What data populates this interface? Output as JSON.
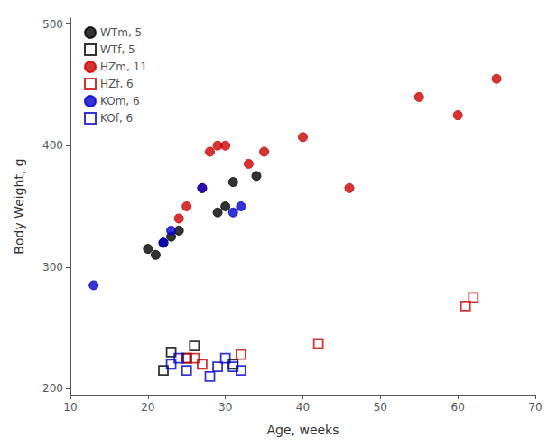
{
  "chart_data": {
    "type": "scatter",
    "xlabel": "Age, weeks",
    "ylabel": "Body Weight, g",
    "xlim": [
      10,
      70
    ],
    "xticks": [
      10,
      20,
      30,
      40,
      50,
      60,
      70
    ],
    "ylim": [
      195,
      505
    ],
    "yticks": [
      200,
      300,
      400,
      500
    ],
    "grid": false,
    "legend": "upper left",
    "series": [
      {
        "name": "WTm, 5",
        "color": "black",
        "marker": "circle",
        "x": [
          20,
          21,
          22,
          23,
          24,
          29,
          30,
          31,
          34
        ],
        "values": [
          315,
          310,
          320,
          325,
          330,
          345,
          350,
          370,
          375
        ]
      },
      {
        "name": "WTf, 5",
        "color": "black",
        "marker": "square",
        "x": [
          22,
          23,
          25,
          26,
          31
        ],
        "values": [
          215,
          230,
          225,
          235,
          220
        ]
      },
      {
        "name": "HZm, 11",
        "color": "#cc0000",
        "marker": "circle",
        "x": [
          24,
          25,
          27,
          28,
          29,
          30,
          33,
          35,
          40,
          46,
          55,
          60,
          65
        ],
        "values": [
          340,
          350,
          365,
          395,
          400,
          400,
          385,
          395,
          407,
          365,
          440,
          425,
          455
        ]
      },
      {
        "name": "HZf, 6",
        "color": "#cc0000",
        "marker": "square",
        "x": [
          25,
          26,
          27,
          32,
          42,
          61,
          62
        ],
        "values": [
          225,
          225,
          220,
          228,
          237,
          268,
          275
        ]
      },
      {
        "name": "KOm, 6",
        "color": "#0000cc",
        "marker": "circle",
        "x": [
          13,
          22,
          23,
          27,
          31,
          32
        ],
        "values": [
          285,
          320,
          330,
          365,
          345,
          350
        ]
      },
      {
        "name": "KOf, 6",
        "color": "#0000cc",
        "marker": "square",
        "x": [
          23,
          24,
          25,
          28,
          29,
          30,
          31,
          32
        ],
        "values": [
          220,
          225,
          215,
          210,
          218,
          225,
          218,
          215
        ]
      }
    ]
  }
}
